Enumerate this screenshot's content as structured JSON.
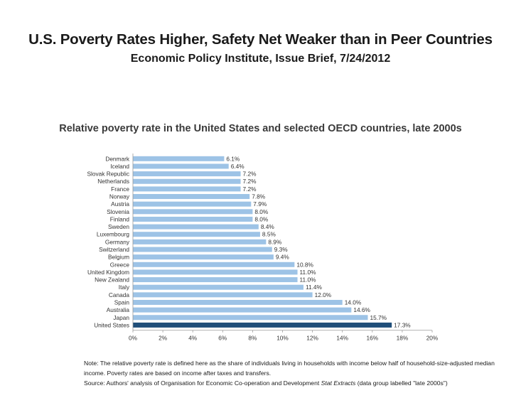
{
  "slide": {
    "title": "U.S. Poverty Rates Higher, Safety Net Weaker than in Peer Countries",
    "subtitle": "Economic Policy Institute, Issue Brief, 7/24/2012"
  },
  "chart_data": {
    "type": "bar",
    "orientation": "horizontal",
    "title": "Relative poverty rate in the United States and selected OECD countries, late 2000s",
    "xlabel": "",
    "ylabel": "",
    "categories": [
      "Denmark",
      "Iceland",
      "Slovak Republic",
      "Netherlands",
      "France",
      "Norway",
      "Austria",
      "Slovenia",
      "Finland",
      "Sweden",
      "Luxembourg",
      "Germany",
      "Switzerland",
      "Belgium",
      "Greece",
      "United Kingdom",
      "New Zealand",
      "Italy",
      "Canada",
      "Spain",
      "Australia",
      "Japan",
      "United States"
    ],
    "values": [
      6.1,
      6.4,
      7.2,
      7.2,
      7.2,
      7.8,
      7.9,
      8.0,
      8.0,
      8.4,
      8.5,
      8.9,
      9.3,
      9.4,
      10.8,
      11.0,
      11.0,
      11.4,
      12.0,
      14.0,
      14.6,
      15.7,
      17.3
    ],
    "value_labels": [
      "6.1%",
      "6.4%",
      "7.2%",
      "7.2%",
      "7.2%",
      "7.8%",
      "7.9%",
      "8.0%",
      "8.0%",
      "8.4%",
      "8.5%",
      "8.9%",
      "9.3%",
      "9.4%",
      "10.8%",
      "11.0%",
      "11.0%",
      "11.4%",
      "12.0%",
      "14.0%",
      "14.6%",
      "15.7%",
      "17.3%"
    ],
    "xlim": [
      0,
      20
    ],
    "xticks": [
      "0%",
      "2%",
      "4%",
      "6%",
      "8%",
      "10%",
      "12%",
      "14%",
      "16%",
      "18%",
      "20%"
    ],
    "grid": false,
    "colors": {
      "default": "#9dc3e6",
      "highlight": "#1f4e79"
    },
    "highlight_category": "United States"
  },
  "notes": {
    "note": "Note: The relative poverty rate is defined here as the share of individuals living in households with income below half of household-size-adjusted median income. Poverty rates are based on income after taxes and transfers.",
    "source_prefix": "Source: Authors' analysis of Organisation for Economic Co-operation and Development ",
    "source_italic": "Stat Extracts",
    "source_suffix": " (data group labelled \"late 2000s\")"
  }
}
